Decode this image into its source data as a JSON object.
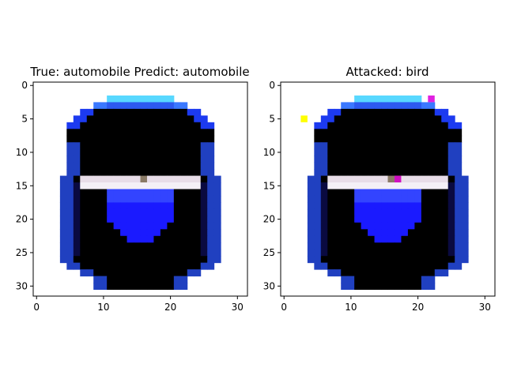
{
  "chart_data": [
    {
      "type": "heatmap",
      "title": "True: automobile  Predict: automobile",
      "xlabel": "",
      "ylabel": "",
      "xlim": [
        -0.5,
        31.5
      ],
      "ylim": [
        31.5,
        -0.5
      ],
      "x_ticks": [
        "0",
        "10",
        "20",
        "30"
      ],
      "y_ticks": [
        "0",
        "5",
        "10",
        "15",
        "20",
        "25",
        "30"
      ],
      "grid": false,
      "image_size": [
        32,
        32
      ],
      "attack_pixels": []
    },
    {
      "type": "heatmap",
      "title": "Attacked: bird",
      "xlabel": "",
      "ylabel": "",
      "xlim": [
        -0.5,
        31.5
      ],
      "ylim": [
        31.5,
        -0.5
      ],
      "x_ticks": [
        "0",
        "10",
        "20",
        "30"
      ],
      "y_ticks": [
        "0",
        "5",
        "10",
        "15",
        "20",
        "25",
        "30"
      ],
      "grid": false,
      "image_size": [
        32,
        32
      ],
      "attack_pixels": [
        {
          "x": 3,
          "y": 5,
          "color": "#ffff00"
        },
        {
          "x": 22,
          "y": 2,
          "color": "#e020e0"
        },
        {
          "x": 17,
          "y": 14,
          "color": "#d010c0"
        }
      ]
    }
  ]
}
